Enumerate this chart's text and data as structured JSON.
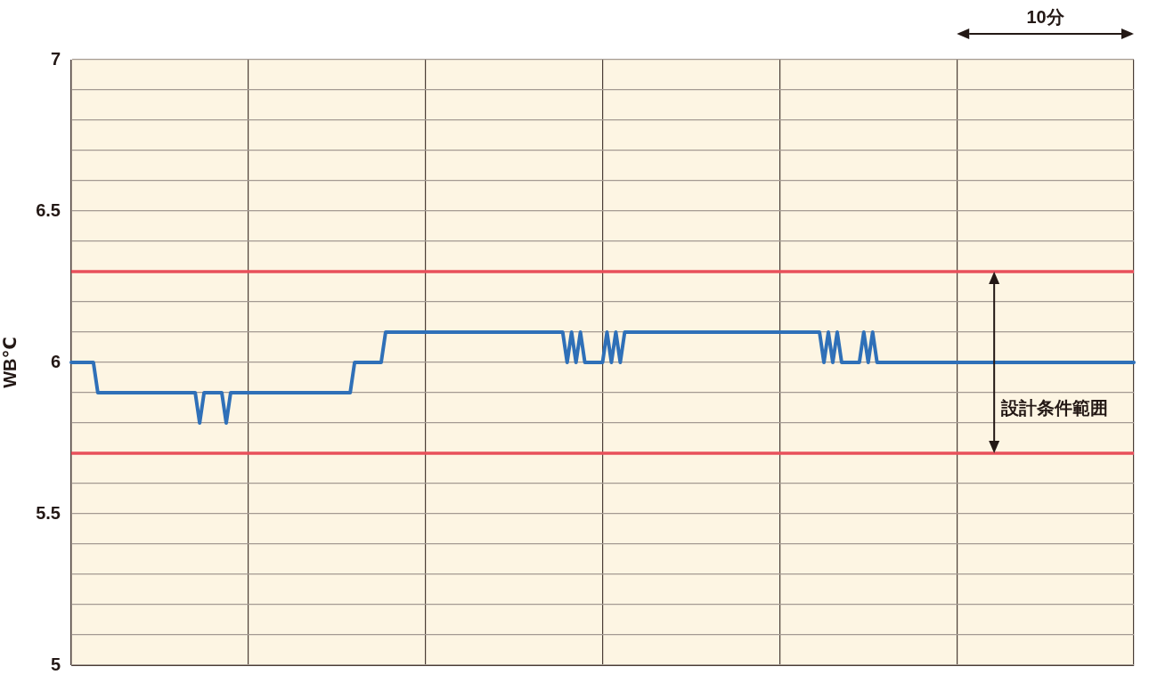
{
  "chart_data": {
    "type": "line",
    "ylabel": "WB℃",
    "categories": [
      null,
      null,
      null,
      null,
      null,
      null,
      null,
      null,
      null,
      null,
      null,
      null,
      null,
      null,
      null,
      null,
      null,
      null,
      null,
      null,
      null,
      null,
      null,
      null,
      null,
      null,
      null,
      null,
      null,
      null,
      null,
      null,
      null,
      null,
      null,
      null,
      null,
      null,
      null,
      null,
      null,
      null,
      null,
      null,
      null,
      null,
      null,
      null,
      null,
      null,
      null,
      null,
      null,
      null,
      null,
      null,
      null,
      null,
      null,
      null,
      null,
      null,
      null,
      null,
      null,
      null,
      null,
      null,
      null,
      null,
      null,
      null,
      null,
      null,
      null,
      null,
      null,
      null,
      null,
      null,
      null,
      null,
      null,
      null,
      null,
      null,
      null,
      null,
      null,
      null,
      null,
      null,
      null,
      null,
      null,
      null,
      null,
      null,
      null,
      null,
      null,
      null,
      null,
      null,
      null,
      null,
      null,
      null,
      null,
      null,
      null,
      null,
      null,
      null,
      null,
      null,
      null,
      null,
      null,
      null,
      null,
      null,
      null,
      null,
      null,
      null,
      null,
      null,
      null,
      null,
      null,
      null,
      null,
      null,
      null,
      null,
      null,
      null,
      null,
      null,
      null,
      null,
      null,
      null,
      null,
      null,
      null,
      null,
      null,
      null,
      null,
      null,
      null,
      null,
      null,
      null,
      null,
      null,
      null,
      null,
      null,
      null,
      null,
      null,
      null,
      null,
      null,
      null,
      null,
      null,
      null,
      null,
      null,
      null,
      null,
      null,
      null,
      null,
      null,
      null,
      null,
      null,
      null,
      null,
      null,
      null,
      null,
      null,
      null,
      null,
      null,
      null,
      null,
      null,
      null,
      null,
      null,
      null,
      null,
      null,
      null,
      null,
      null,
      null,
      null,
      null,
      null,
      null,
      null,
      null,
      null,
      null,
      null,
      null,
      null,
      null,
      null,
      null,
      null,
      null,
      null,
      null,
      null,
      null,
      null,
      null,
      null,
      null,
      null,
      null,
      null,
      null,
      null,
      null,
      null,
      null,
      null,
      null,
      null,
      null,
      null
    ],
    "series": [
      {
        "color": "#2f70b8",
        "values": [
          6,
          6,
          6,
          6,
          6,
          6,
          5.9,
          5.9,
          5.9,
          5.9,
          5.9,
          5.9,
          5.9,
          5.9,
          5.9,
          5.9,
          5.9,
          5.9,
          5.9,
          5.9,
          5.9,
          5.9,
          5.9,
          5.9,
          5.9,
          5.9,
          5.9,
          5.9,
          5.9,
          5.8,
          5.9,
          5.9,
          5.9,
          5.9,
          5.9,
          5.8,
          5.9,
          5.9,
          5.9,
          5.9,
          5.9,
          5.9,
          5.9,
          5.9,
          5.9,
          5.9,
          5.9,
          5.9,
          5.9,
          5.9,
          5.9,
          5.9,
          5.9,
          5.9,
          5.9,
          5.9,
          5.9,
          5.9,
          5.9,
          5.9,
          5.9,
          5.9,
          5.9,
          5.9,
          6,
          6,
          6,
          6,
          6,
          6,
          6,
          6.1,
          6.1,
          6.1,
          6.1,
          6.1,
          6.1,
          6.1,
          6.1,
          6.1,
          6.1,
          6.1,
          6.1,
          6.1,
          6.1,
          6.1,
          6.1,
          6.1,
          6.1,
          6.1,
          6.1,
          6.1,
          6.1,
          6.1,
          6.1,
          6.1,
          6.1,
          6.1,
          6.1,
          6.1,
          6.1,
          6.1,
          6.1,
          6.1,
          6.1,
          6.1,
          6.1,
          6.1,
          6.1,
          6.1,
          6.1,
          6.1,
          6,
          6.1,
          6,
          6.1,
          6,
          6,
          6,
          6,
          6,
          6.1,
          6,
          6.1,
          6,
          6.1,
          6.1,
          6.1,
          6.1,
          6.1,
          6.1,
          6.1,
          6.1,
          6.1,
          6.1,
          6.1,
          6.1,
          6.1,
          6.1,
          6.1,
          6.1,
          6.1,
          6.1,
          6.1,
          6.1,
          6.1,
          6.1,
          6.1,
          6.1,
          6.1,
          6.1,
          6.1,
          6.1,
          6.1,
          6.1,
          6.1,
          6.1,
          6.1,
          6.1,
          6.1,
          6.1,
          6.1,
          6.1,
          6.1,
          6.1,
          6.1,
          6.1,
          6.1,
          6.1,
          6.1,
          6,
          6.1,
          6,
          6.1,
          6,
          6,
          6,
          6,
          6,
          6.1,
          6,
          6.1,
          6,
          6,
          6,
          6,
          6,
          6,
          6,
          6,
          6,
          6,
          6,
          6,
          6,
          6,
          6,
          6,
          6,
          6,
          6,
          6,
          6,
          6,
          6,
          6,
          6,
          6,
          6,
          6,
          6,
          6,
          6,
          6,
          6,
          6,
          6,
          6,
          6,
          6,
          6,
          6,
          6,
          6,
          6,
          6,
          6,
          6,
          6,
          6,
          6,
          6,
          6,
          6,
          6,
          6,
          6,
          6,
          6,
          6,
          6
        ]
      }
    ],
    "ylim": [
      5,
      7
    ],
    "yticks": [
      5,
      {
        "value": 5.1,
        "label": null
      },
      {
        "value": 5.2,
        "label": null
      },
      {
        "value": 5.3,
        "label": null
      },
      {
        "value": 5.4,
        "label": null
      },
      5.5,
      {
        "value": 5.6,
        "label": null
      },
      {
        "value": 5.8,
        "label": null
      },
      {
        "value": 5.9,
        "label": null
      },
      6,
      {
        "value": 6.1,
        "label": null
      },
      {
        "value": 6.2,
        "label": null
      },
      {
        "value": 6.4,
        "label": null
      },
      6.5,
      {
        "value": 6.6,
        "label": null
      },
      {
        "value": 6.7,
        "label": null
      },
      {
        "value": 6.8,
        "label": null
      },
      {
        "value": 6.9,
        "label": null
      },
      7
    ],
    "tick_labels": "y",
    "grid": true,
    "marker": "none",
    "line_style": "solid",
    "ref_lines": [
      {
        "axis": "y",
        "value": 6.3,
        "color": "#e8505b"
      },
      {
        "axis": "y",
        "value": 5.7,
        "color": "#e8505b"
      }
    ],
    "annotations": [
      "10分",
      "設計条件範囲"
    ]
  }
}
